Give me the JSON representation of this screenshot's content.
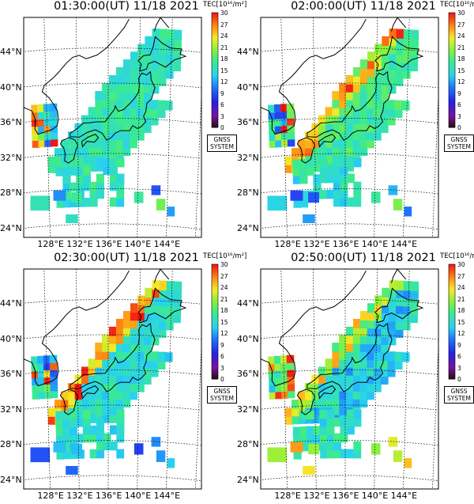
{
  "colorbar": {
    "label": "TEC[10¹⁶/m²]",
    "ticks": [
      "30",
      "27",
      "24",
      "21",
      "18",
      "15",
      "12",
      "9",
      "6",
      "3",
      "0"
    ],
    "range": [
      0,
      30
    ]
  },
  "stamp": [
    "GNSS",
    "SYSTEM"
  ],
  "lat_labels": [
    "44°N",
    "40°N",
    "36°N",
    "32°N",
    "28°N",
    "24°N"
  ],
  "lon_labels": [
    "128°E",
    "132°E",
    "136°E",
    "140°E",
    "144°E"
  ],
  "panels": [
    {
      "title": "01:30:00(UT) 11/18 2021",
      "tec_level": "low-to-moderate; mostly cyan-green"
    },
    {
      "title": "02:00:00(UT) 11/18 2021",
      "tec_level": "enhanced along western coast; yellow-red patches"
    },
    {
      "title": "02:30:00(UT) 11/18 2021",
      "tec_level": "strong red enhancement along Sea of Japan coast"
    },
    {
      "title": "02:50:00(UT) 11/18 2021",
      "tec_level": "enhancement decaying; mostly blue-cyan with green"
    }
  ]
}
